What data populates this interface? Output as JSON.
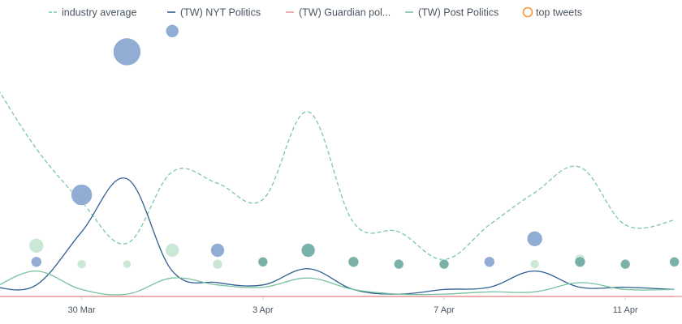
{
  "colors": {
    "industry_average": "#7cc4b3",
    "nyt": "#2e5f92",
    "guardian": "#e8999c",
    "post": "#78c2a0",
    "top_tweets": "#f39a3a",
    "bubble_blue": "#88a6cf",
    "bubble_green_light": "#c6e6d2",
    "bubble_teal": "#6faaa2",
    "axis_line": "#e89a9c"
  },
  "chart_data": {
    "type": "line",
    "x_unit": "date",
    "x_start": "2021-03-28",
    "x_ticks": [
      {
        "date": "2021-03-30",
        "label": "30 Mar"
      },
      {
        "date": "2021-04-03",
        "label": "3 Apr"
      },
      {
        "date": "2021-04-07",
        "label": "7 Apr"
      },
      {
        "date": "2021-04-11",
        "label": "11 Apr"
      }
    ],
    "y_axis_visible": false,
    "grid": false,
    "legend_position": "top",
    "legend": [
      {
        "label": "industry average",
        "marker": "dashed-line",
        "color_key": "industry_average"
      },
      {
        "label": "(TW) NYT Politics",
        "marker": "line",
        "color_key": "nyt"
      },
      {
        "label": "(TW) Guardian pol...",
        "marker": "line",
        "color_key": "guardian"
      },
      {
        "label": "(TW) Post Politics",
        "marker": "line",
        "color_key": "post"
      },
      {
        "label": "top tweets",
        "marker": "circle",
        "color_key": "top_tweets"
      }
    ],
    "series": [
      {
        "name": "industry average",
        "style": "dashed",
        "color_key": "industry_average",
        "points": [
          [
            "2021-03-28T02:00",
            0.92
          ],
          [
            "2021-03-29T00:00",
            0.64
          ],
          [
            "2021-03-30T00:00",
            0.41
          ],
          [
            "2021-03-31T00:00",
            0.23
          ],
          [
            "2021-04-01T00:00",
            0.54
          ],
          [
            "2021-04-02T00:00",
            0.49
          ],
          [
            "2021-04-03T00:00",
            0.42
          ],
          [
            "2021-04-04T00:00",
            0.8
          ],
          [
            "2021-04-05T00:00",
            0.32
          ],
          [
            "2021-04-06T00:00",
            0.28
          ],
          [
            "2021-04-07T00:00",
            0.16
          ],
          [
            "2021-04-08T00:00",
            0.31
          ],
          [
            "2021-04-09T00:00",
            0.45
          ],
          [
            "2021-04-10T00:00",
            0.56
          ],
          [
            "2021-04-11T00:00",
            0.31
          ],
          [
            "2021-04-12T02:00",
            0.33
          ]
        ]
      },
      {
        "name": "(TW) NYT Politics",
        "style": "solid",
        "color_key": "nyt",
        "points": [
          [
            "2021-03-28T02:00",
            0.04
          ],
          [
            "2021-03-29T00:00",
            0.05
          ],
          [
            "2021-03-30T00:00",
            0.28
          ],
          [
            "2021-03-31T00:00",
            0.51
          ],
          [
            "2021-04-01T00:00",
            0.11
          ],
          [
            "2021-04-02T00:00",
            0.06
          ],
          [
            "2021-04-03T00:00",
            0.05
          ],
          [
            "2021-04-04T00:00",
            0.12
          ],
          [
            "2021-04-05T00:00",
            0.03
          ],
          [
            "2021-04-06T00:00",
            0.01
          ],
          [
            "2021-04-07T00:00",
            0.03
          ],
          [
            "2021-04-08T00:00",
            0.04
          ],
          [
            "2021-04-09T00:00",
            0.11
          ],
          [
            "2021-04-10T00:00",
            0.04
          ],
          [
            "2021-04-11T00:00",
            0.04
          ],
          [
            "2021-04-12T02:00",
            0.03
          ]
        ]
      },
      {
        "name": "(TW) Guardian pol...",
        "style": "solid",
        "color_key": "guardian",
        "points": [
          [
            "2021-03-28T02:00",
            0.0
          ],
          [
            "2021-04-12T02:00",
            0.0
          ]
        ]
      },
      {
        "name": "(TW) Post Politics",
        "style": "solid",
        "color_key": "post",
        "points": [
          [
            "2021-03-28T02:00",
            0.04
          ],
          [
            "2021-03-29T00:00",
            0.11
          ],
          [
            "2021-03-30T00:00",
            0.03
          ],
          [
            "2021-03-31T00:00",
            0.01
          ],
          [
            "2021-04-01T00:00",
            0.08
          ],
          [
            "2021-04-02T00:00",
            0.05
          ],
          [
            "2021-04-03T00:00",
            0.04
          ],
          [
            "2021-04-04T00:00",
            0.08
          ],
          [
            "2021-04-05T00:00",
            0.03
          ],
          [
            "2021-04-06T00:00",
            0.01
          ],
          [
            "2021-04-07T00:00",
            0.01
          ],
          [
            "2021-04-08T00:00",
            0.02
          ],
          [
            "2021-04-09T00:00",
            0.02
          ],
          [
            "2021-04-10T00:00",
            0.06
          ],
          [
            "2021-04-11T00:00",
            0.03
          ],
          [
            "2021-04-12T02:00",
            0.03
          ]
        ]
      }
    ],
    "bubbles": [
      {
        "date": "2021-03-28T02:00",
        "y": 0.15,
        "r": 6,
        "color_key": "bubble_teal"
      },
      {
        "date": "2021-03-29T00:00",
        "y": 0.22,
        "r": 9,
        "color_key": "bubble_green_light"
      },
      {
        "date": "2021-03-29T00:00",
        "y": 0.15,
        "r": 6.5,
        "color_key": "bubble_blue"
      },
      {
        "date": "2021-03-30T00:00",
        "y": 0.14,
        "r": 5.5,
        "color_key": "bubble_green_light"
      },
      {
        "date": "2021-03-30T00:00",
        "y": 0.44,
        "r": 13,
        "color_key": "bubble_blue"
      },
      {
        "date": "2021-03-31T00:00",
        "y": 0.14,
        "r": 5,
        "color_key": "bubble_green_light"
      },
      {
        "date": "2021-03-31T00:00",
        "y": 1.06,
        "r": 17,
        "color_key": "bubble_blue"
      },
      {
        "date": "2021-04-01T00:00",
        "y": 0.2,
        "r": 8.5,
        "color_key": "bubble_green_light"
      },
      {
        "date": "2021-04-01T00:00",
        "y": 1.15,
        "r": 8,
        "color_key": "bubble_blue"
      },
      {
        "date": "2021-04-02T00:00",
        "y": 0.14,
        "r": 6,
        "color_key": "bubble_green_light"
      },
      {
        "date": "2021-04-02T00:00",
        "y": 0.2,
        "r": 8.5,
        "color_key": "bubble_blue"
      },
      {
        "date": "2021-04-03T00:00",
        "y": 0.15,
        "r": 6,
        "color_key": "bubble_teal"
      },
      {
        "date": "2021-04-04T00:00",
        "y": 0.2,
        "r": 8.5,
        "color_key": "bubble_teal"
      },
      {
        "date": "2021-04-05T00:00",
        "y": 0.15,
        "r": 6.5,
        "color_key": "bubble_teal"
      },
      {
        "date": "2021-04-06T00:00",
        "y": 0.14,
        "r": 6,
        "color_key": "bubble_teal"
      },
      {
        "date": "2021-04-07T00:00",
        "y": 0.14,
        "r": 6,
        "color_key": "bubble_teal"
      },
      {
        "date": "2021-04-08T00:00",
        "y": 0.15,
        "r": 6.5,
        "color_key": "bubble_blue"
      },
      {
        "date": "2021-04-09T00:00",
        "y": 0.14,
        "r": 5.5,
        "color_key": "bubble_green_light"
      },
      {
        "date": "2021-04-09T00:00",
        "y": 0.25,
        "r": 9.5,
        "color_key": "bubble_blue"
      },
      {
        "date": "2021-04-10T00:00",
        "y": 0.16,
        "r": 6.5,
        "color_key": "bubble_green_light"
      },
      {
        "date": "2021-04-10T00:00",
        "y": 0.15,
        "r": 6.5,
        "color_key": "bubble_teal"
      },
      {
        "date": "2021-04-11T00:00",
        "y": 0.14,
        "r": 6,
        "color_key": "bubble_teal"
      },
      {
        "date": "2021-04-12T02:00",
        "y": 0.15,
        "r": 6,
        "color_key": "bubble_teal"
      }
    ]
  }
}
